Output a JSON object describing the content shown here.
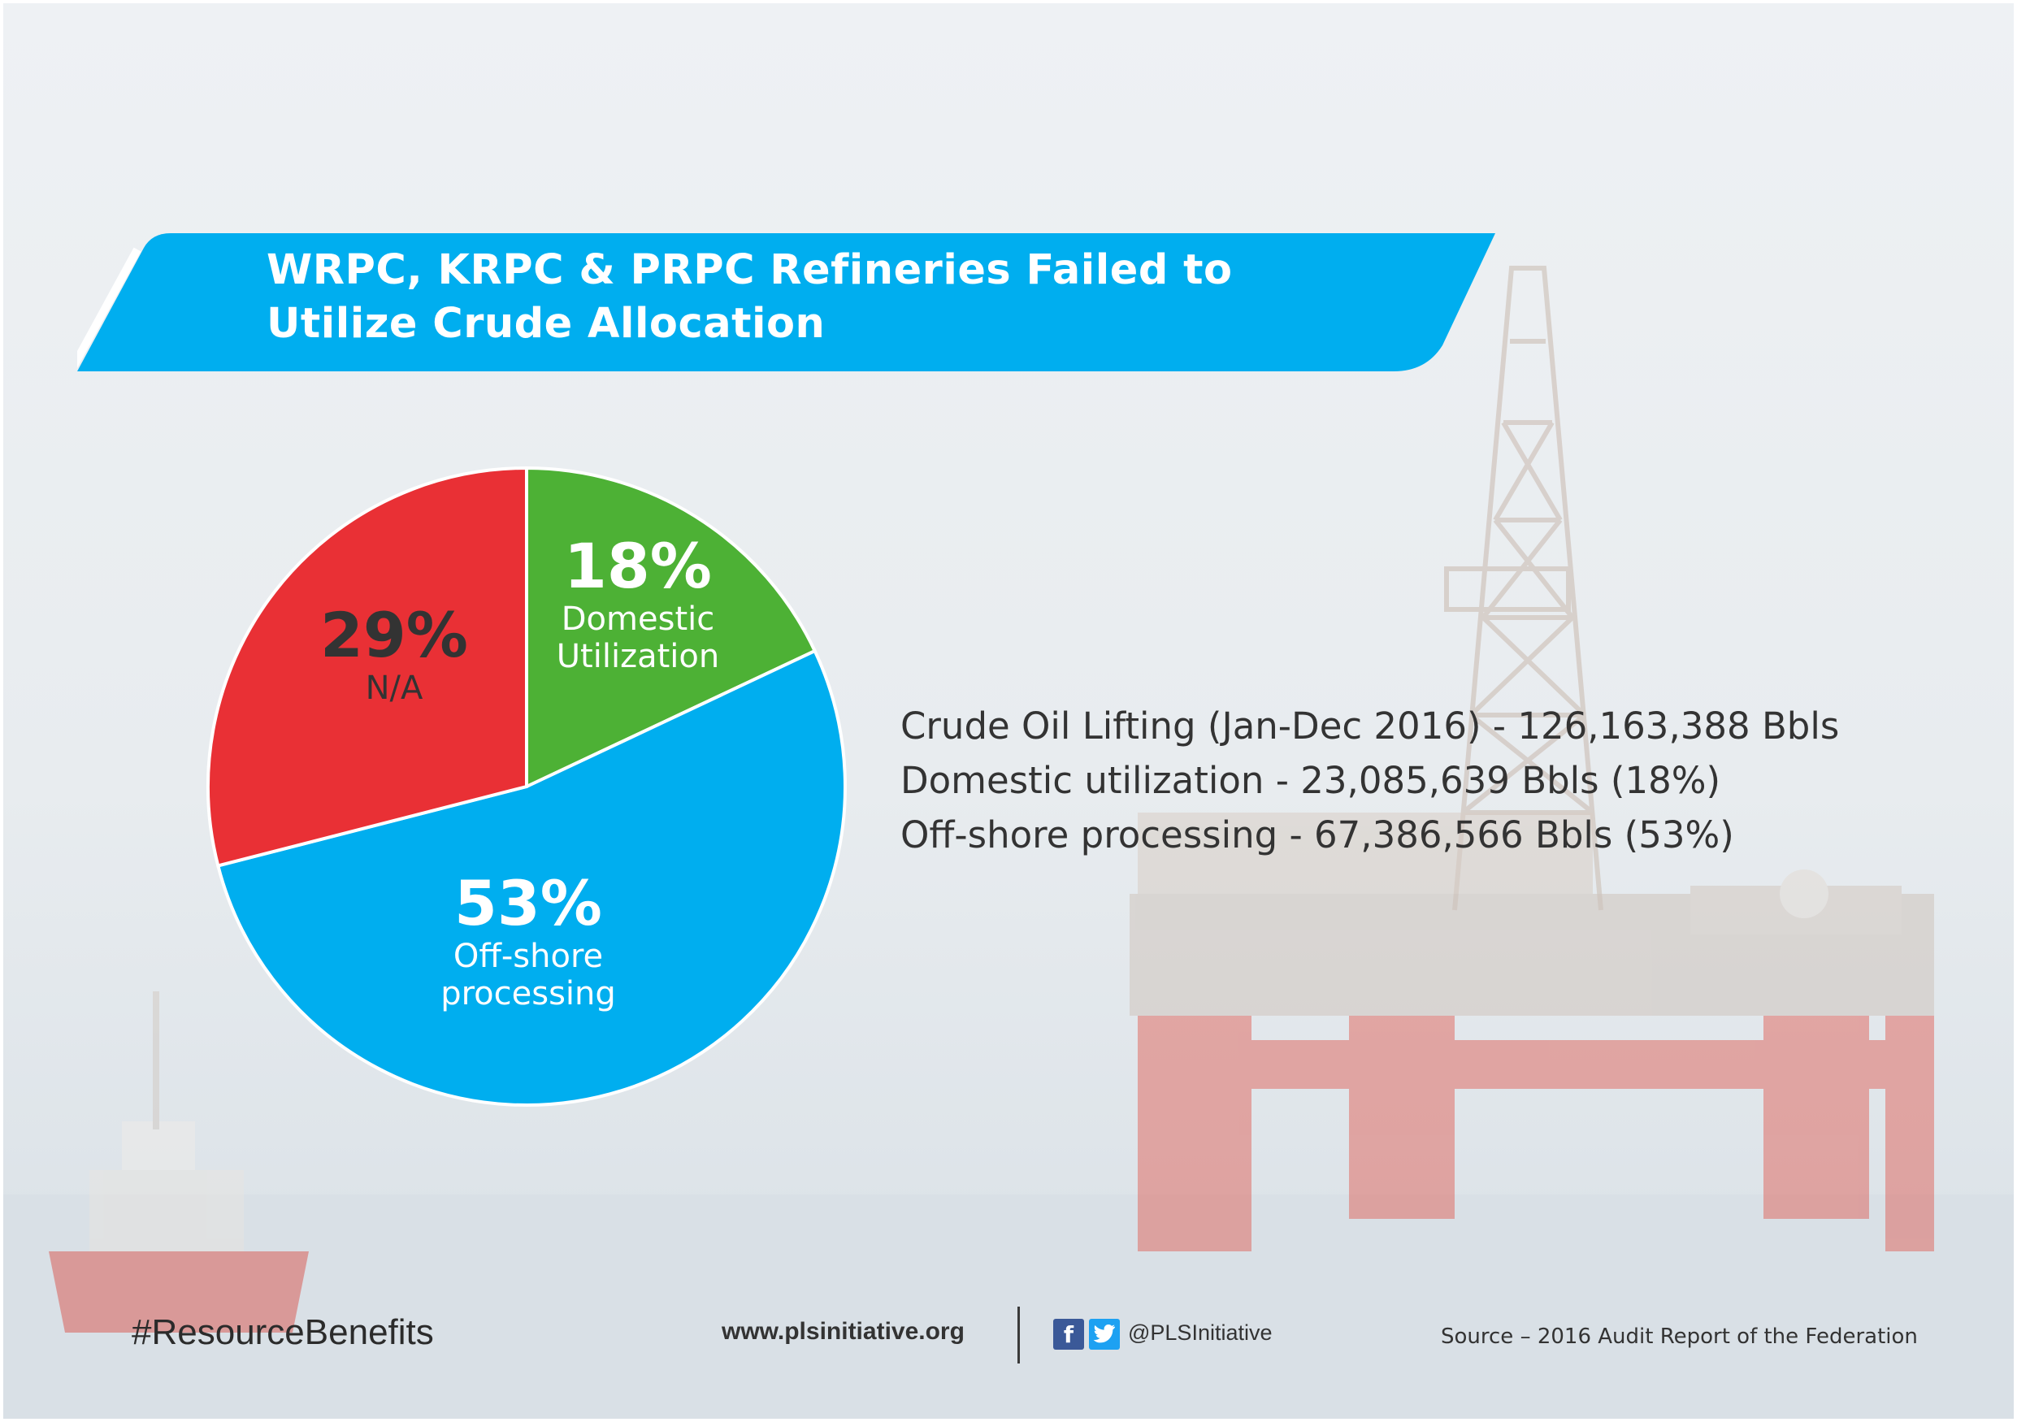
{
  "banner": {
    "title_line1": "WRPC, KRPC & PRPC Refineries Failed to",
    "title_line2": "Utilize Crude Allocation",
    "color": "#00AEEF"
  },
  "chart_data": {
    "type": "pie",
    "slices": [
      {
        "label": "Domestic Utilization",
        "line1": "Domestic",
        "line2": "Utilization",
        "value": 18,
        "pct_text": "18%",
        "color": "#4DB135"
      },
      {
        "label": "Off-shore processing",
        "line1": "Off-shore",
        "line2": "processing",
        "value": 53,
        "pct_text": "53%",
        "color": "#00AEEF"
      },
      {
        "label": "N/A",
        "line1": "N/A",
        "line2": "",
        "value": 29,
        "pct_text": "29%",
        "color": "#E93035"
      }
    ]
  },
  "stats": {
    "line1": "Crude Oil Lifting (Jan-Dec 2016) - 126,163,388 Bbls",
    "line2": "Domestic utilization - 23,085,639 Bbls (18%)",
    "line3": "Off-shore processing - 67,386,566 Bbls (53%)"
  },
  "footer": {
    "hashtag": "#ResourceBenefits",
    "website": "www.plsinitiative.org",
    "facebook_icon": "f",
    "handle": "@PLSInitiative",
    "source": "Source – 2016 Audit Report of the Federation"
  },
  "icons": [
    "facebook-icon",
    "twitter-icon"
  ]
}
